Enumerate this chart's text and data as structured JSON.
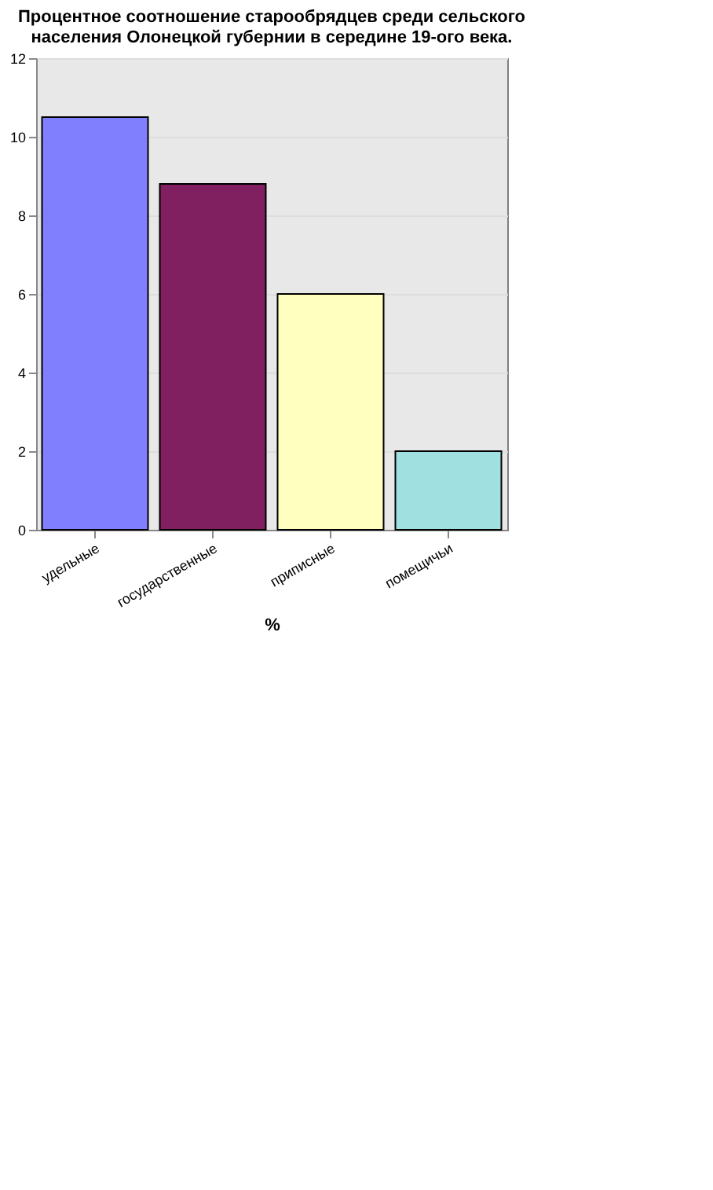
{
  "chart_data": {
    "type": "bar",
    "title": [
      "Процентное соотношение старообрядцев среди сельского",
      "населения Олонецкой губернии в середине 19-ого века."
    ],
    "xlabel": "%",
    "categories": [
      "удельные",
      "государственные",
      "приписные",
      "помещичьи"
    ],
    "values": [
      10.5,
      8.8,
      6,
      2
    ],
    "colors": [
      "#8080ff",
      "#802060",
      "#ffffc0",
      "#a0e0e0"
    ],
    "ylim": [
      0,
      12
    ],
    "yticks": [
      0,
      2,
      4,
      6,
      8,
      10,
      12
    ],
    "grid": "y"
  }
}
